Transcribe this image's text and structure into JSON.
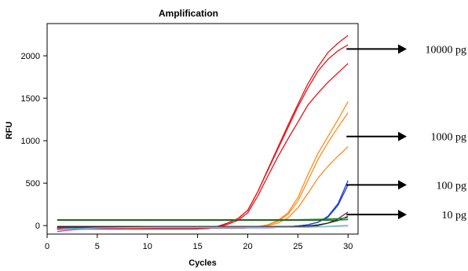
{
  "chart_data": {
    "type": "line",
    "title": "Amplification",
    "xlabel": "Cycles",
    "ylabel": "RFU",
    "xlim": [
      0,
      31
    ],
    "ylim": [
      -100,
      2380
    ],
    "xticks": [
      0,
      5,
      10,
      15,
      20,
      25,
      30
    ],
    "yticks": [
      0,
      500,
      1000,
      1500,
      2000
    ],
    "grid": false,
    "x": [
      1,
      2,
      3,
      4,
      5,
      6,
      7,
      8,
      9,
      10,
      11,
      12,
      13,
      14,
      15,
      16,
      17,
      18,
      19,
      20,
      21,
      22,
      23,
      24,
      25,
      26,
      27,
      28,
      29,
      30
    ],
    "series": [
      {
        "color": "#e8141c",
        "values": [
          -40,
          -40,
          -40,
          -40,
          -40,
          -40,
          -40,
          -40,
          -40,
          -40,
          -40,
          -40,
          -40,
          -40,
          -40,
          -30,
          -10,
          30,
          80,
          180,
          400,
          650,
          900,
          1150,
          1400,
          1620,
          1820,
          1960,
          2060,
          2130
        ]
      },
      {
        "color": "#e8141c",
        "values": [
          -40,
          -40,
          -40,
          -40,
          -40,
          -40,
          -40,
          -40,
          -40,
          -40,
          -40,
          -40,
          -40,
          -40,
          -40,
          -30,
          -10,
          30,
          80,
          180,
          400,
          660,
          920,
          1180,
          1430,
          1670,
          1870,
          2040,
          2150,
          2240
        ]
      },
      {
        "color": "#e8141c",
        "values": [
          -40,
          -40,
          -40,
          -40,
          -40,
          -40,
          -40,
          -40,
          -40,
          -40,
          -40,
          -40,
          -40,
          -40,
          -40,
          -35,
          -20,
          15,
          60,
          150,
          350,
          580,
          810,
          1020,
          1220,
          1420,
          1560,
          1690,
          1800,
          1910
        ]
      },
      {
        "color": "#ff8c1a",
        "values": [
          -30,
          -30,
          -30,
          -30,
          -30,
          -30,
          -30,
          -30,
          -30,
          -30,
          -30,
          -30,
          -30,
          -30,
          -30,
          -30,
          -30,
          -30,
          -30,
          -25,
          -15,
          10,
          60,
          150,
          330,
          600,
          850,
          1050,
          1250,
          1460
        ]
      },
      {
        "color": "#ff8c1a",
        "values": [
          -30,
          -30,
          -30,
          -30,
          -30,
          -30,
          -30,
          -30,
          -30,
          -30,
          -30,
          -30,
          -30,
          -30,
          -30,
          -30,
          -30,
          -30,
          -30,
          -25,
          -15,
          10,
          50,
          130,
          290,
          530,
          780,
          980,
          1160,
          1330
        ]
      },
      {
        "color": "#ff8c1a",
        "values": [
          -30,
          -30,
          -30,
          -30,
          -30,
          -30,
          -30,
          -30,
          -30,
          -30,
          -30,
          -30,
          -30,
          -30,
          -30,
          -30,
          -30,
          -30,
          -30,
          -25,
          -20,
          0,
          30,
          90,
          210,
          380,
          560,
          700,
          820,
          930
        ]
      },
      {
        "color": "#1f3de0",
        "values": [
          -25,
          -25,
          -25,
          -25,
          -25,
          -25,
          -25,
          -25,
          -25,
          -25,
          -25,
          -25,
          -25,
          -25,
          -25,
          -25,
          -25,
          -25,
          -25,
          -25,
          -25,
          -25,
          -20,
          -15,
          -5,
          10,
          40,
          110,
          260,
          530
        ]
      },
      {
        "color": "#1f3de0",
        "values": [
          -25,
          -25,
          -25,
          -25,
          -25,
          -25,
          -25,
          -25,
          -25,
          -25,
          -25,
          -25,
          -25,
          -25,
          -25,
          -25,
          -25,
          -25,
          -25,
          -25,
          -25,
          -25,
          -20,
          -15,
          -5,
          10,
          40,
          100,
          240,
          480
        ]
      },
      {
        "color": "#8b1a4a",
        "values": [
          -20,
          -20,
          -20,
          -20,
          -20,
          -20,
          -20,
          -20,
          -20,
          -20,
          -20,
          -20,
          -20,
          -20,
          -20,
          -20,
          -20,
          -20,
          -20,
          -20,
          -20,
          -20,
          -20,
          -20,
          -18,
          -12,
          0,
          30,
          80,
          160
        ]
      },
      {
        "color": "#2b2b2b",
        "values": [
          -10,
          -10,
          -10,
          -10,
          -10,
          -10,
          -10,
          -10,
          -10,
          -10,
          -10,
          -10,
          -10,
          -10,
          -10,
          -10,
          -10,
          -10,
          -10,
          -10,
          -10,
          -10,
          -10,
          -10,
          -8,
          -4,
          8,
          30,
          60,
          110
        ]
      },
      {
        "color": "#0a8a1e",
        "values": [
          70,
          70,
          70,
          70,
          70,
          70,
          70,
          70,
          70,
          70,
          70,
          70,
          70,
          70,
          70,
          70,
          70,
          70,
          70,
          70,
          70,
          70,
          70,
          70,
          70,
          72,
          74,
          78,
          82,
          90
        ]
      },
      {
        "color": "#1a5c1a",
        "values": [
          62,
          62,
          62,
          62,
          62,
          62,
          62,
          62,
          62,
          62,
          62,
          62,
          62,
          62,
          62,
          62,
          62,
          62,
          62,
          62,
          62,
          62,
          62,
          62,
          62,
          62,
          63,
          64,
          66,
          70
        ]
      },
      {
        "color": "#cc33cc",
        "values": [
          -70,
          -55,
          -45,
          -40,
          -35,
          -30,
          -28,
          -26,
          -24,
          -22,
          -20,
          -20,
          -20,
          -20,
          -20,
          -20,
          -20,
          -20,
          -20,
          -20,
          -20,
          -20,
          -20,
          -20,
          -20,
          -18,
          -15,
          -10,
          -5,
          0
        ]
      },
      {
        "color": "#66cccc",
        "values": [
          -50,
          -42,
          -36,
          -32,
          -28,
          -26,
          -24,
          -22,
          -21,
          -20,
          -20,
          -20,
          -20,
          -20,
          -20,
          -20,
          -20,
          -20,
          -20,
          -20,
          -20,
          -20,
          -20,
          -20,
          -20,
          -18,
          -15,
          -12,
          -8,
          -4
        ]
      }
    ],
    "annotations": [
      {
        "label": "10000 pg",
        "x": 30,
        "y": 2080
      },
      {
        "label": "1000 pg",
        "x": 30,
        "y": 1050
      },
      {
        "label": "100 pg",
        "x": 30,
        "y": 480
      },
      {
        "label": "10 pg",
        "x": 30,
        "y": 130
      }
    ]
  }
}
